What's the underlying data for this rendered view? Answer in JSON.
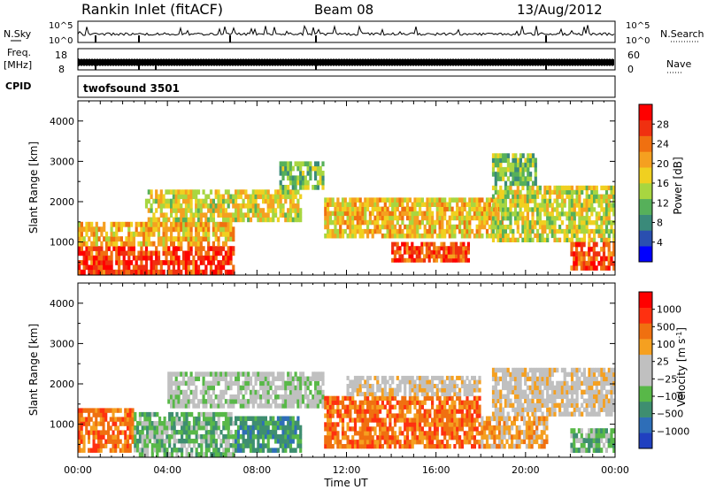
{
  "header": {
    "station": "Rankin Inlet (fitACF)",
    "beam": "Beam 08",
    "date": "13/Aug/2012"
  },
  "strips": {
    "nsky_label": "N.Sky",
    "nsky_ticks": [
      "10^5",
      "10^0"
    ],
    "nsearch_label": "N.Search",
    "freq_label_top": "Freq.",
    "freq_label_unit": "[MHz]",
    "freq_ticks": [
      "18",
      "8"
    ],
    "nave_label": "Nave",
    "nave_ticks": [
      "60",
      "0"
    ],
    "cpid_label": "CPID",
    "cpid_value": "twofsound 3501"
  },
  "colors": {
    "power_scale": [
      "#0000ff",
      "#2a4fb0",
      "#3a8a7a",
      "#56b05a",
      "#a8d640",
      "#f0d020",
      "#f5a020",
      "#f07010",
      "#f03010",
      "#ff0000"
    ],
    "velocity_scale": [
      "#2040c0",
      "#2e6eb8",
      "#3e8e70",
      "#58b848",
      "#c0c0c0",
      "#c0c0c0",
      "#f5a020",
      "#f07010",
      "#ff3010",
      "#ff0000"
    ]
  },
  "chart_data": [
    {
      "type": "heatmap",
      "name": "power",
      "ylabel": "Slant Range [km]",
      "xlabel": "",
      "ylim": [
        180,
        4500
      ],
      "yticks": [
        1000,
        2000,
        3000,
        4000
      ],
      "xlim": [
        0,
        24
      ],
      "xticks": [
        "00:00",
        "04:00",
        "08:00",
        "12:00",
        "16:00",
        "20:00",
        "00:00"
      ],
      "colorbar_label": "Power [dB]",
      "colorbar_ticks": [
        "28",
        "24",
        "20",
        "16",
        "12",
        "8",
        "4"
      ],
      "colorbar_range": [
        0,
        32
      ],
      "echo_bands": [
        {
          "t0": 0.0,
          "t1": 7.0,
          "r0": 200,
          "r1": 900,
          "v": 27
        },
        {
          "t0": 0.0,
          "t1": 7.0,
          "r0": 900,
          "r1": 1500,
          "v": 20
        },
        {
          "t0": 3.0,
          "t1": 10.0,
          "r0": 1500,
          "r1": 2300,
          "v": 17
        },
        {
          "t0": 9.0,
          "t1": 11.0,
          "r0": 2300,
          "r1": 3000,
          "v": 12
        },
        {
          "t0": 11.0,
          "t1": 19.0,
          "r0": 1100,
          "r1": 2100,
          "v": 19
        },
        {
          "t0": 14.0,
          "t1": 17.5,
          "r0": 500,
          "r1": 1000,
          "v": 26
        },
        {
          "t0": 18.5,
          "t1": 24.0,
          "r0": 1000,
          "r1": 2400,
          "v": 16
        },
        {
          "t0": 18.5,
          "t1": 20.5,
          "r0": 2400,
          "r1": 3200,
          "v": 12
        },
        {
          "t0": 22.0,
          "t1": 24.0,
          "r0": 300,
          "r1": 1000,
          "v": 26
        }
      ]
    },
    {
      "type": "heatmap",
      "name": "velocity",
      "ylabel": "Slant Range [km]",
      "xlabel": "Time UT",
      "ylim": [
        180,
        4500
      ],
      "yticks": [
        1000,
        2000,
        3000,
        4000
      ],
      "xlim": [
        0,
        24
      ],
      "xticks": [
        "00:00",
        "04:00",
        "08:00",
        "12:00",
        "16:00",
        "20:00",
        "00:00"
      ],
      "colorbar_label": "Velocity [m s",
      "colorbar_sup": "-1",
      "colorbar_ticks": [
        "1000",
        "500",
        "100",
        "25",
        "−25",
        "−100",
        "−500",
        "−1000"
      ],
      "echo_bands": [
        {
          "t0": 0.0,
          "t1": 2.5,
          "r0": 300,
          "r1": 1400,
          "v": 7
        },
        {
          "t0": 2.5,
          "t1": 7.0,
          "r0": 200,
          "r1": 1300,
          "v": 3
        },
        {
          "t0": 4.0,
          "t1": 11.0,
          "r0": 1400,
          "r1": 2300,
          "v": 4
        },
        {
          "t0": 7.0,
          "t1": 10.0,
          "r0": 300,
          "r1": 1200,
          "v": 2
        },
        {
          "t0": 11.0,
          "t1": 18.0,
          "r0": 400,
          "r1": 1700,
          "v": 7
        },
        {
          "t0": 12.0,
          "t1": 18.0,
          "r0": 1700,
          "r1": 2200,
          "v": 5
        },
        {
          "t0": 18.5,
          "t1": 24.0,
          "r0": 1200,
          "r1": 2400,
          "v": 5
        },
        {
          "t0": 18.0,
          "t1": 21.0,
          "r0": 400,
          "r1": 1200,
          "v": 6
        },
        {
          "t0": 22.0,
          "t1": 24.0,
          "r0": 300,
          "r1": 900,
          "v": 3
        }
      ]
    }
  ]
}
